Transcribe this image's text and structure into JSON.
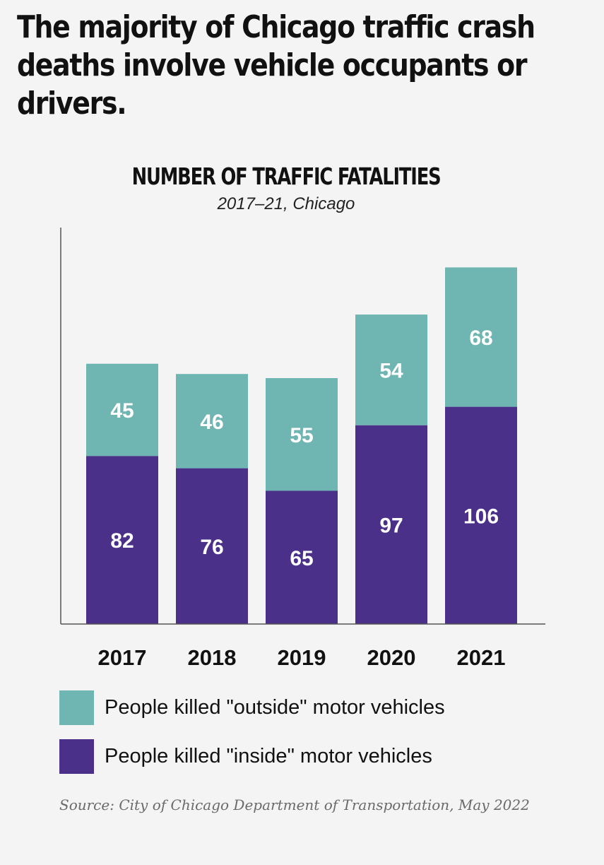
{
  "headline": "The majority of Chicago traffic crash deaths involve vehicle occupants or drivers.",
  "chart_data": {
    "type": "bar",
    "stacked": true,
    "title": "NUMBER OF TRAFFIC FATALITIES",
    "subtitle": "2017–21, Chicago",
    "categories": [
      "2017",
      "2018",
      "2019",
      "2020",
      "2021"
    ],
    "series": [
      {
        "name": "People killed \"inside\" motor vehicles",
        "color": "#4a3088",
        "values": [
          82,
          76,
          65,
          97,
          106
        ]
      },
      {
        "name": "People killed \"outside\" motor vehicles",
        "color": "#6fb5b2",
        "values": [
          45,
          46,
          55,
          54,
          68
        ]
      }
    ],
    "ylim": [
      0,
      174
    ],
    "xlabel": "",
    "ylabel": "",
    "grid": false,
    "legend_position": "bottom-left"
  },
  "legend": {
    "outside_label": "People killed \"outside\" motor vehicles",
    "outside_color": "#6fb5b2",
    "inside_label": "People killed \"inside\" motor vehicles",
    "inside_color": "#4a3088"
  },
  "source": "Source: City of Chicago Department of Transportation, May 2022"
}
